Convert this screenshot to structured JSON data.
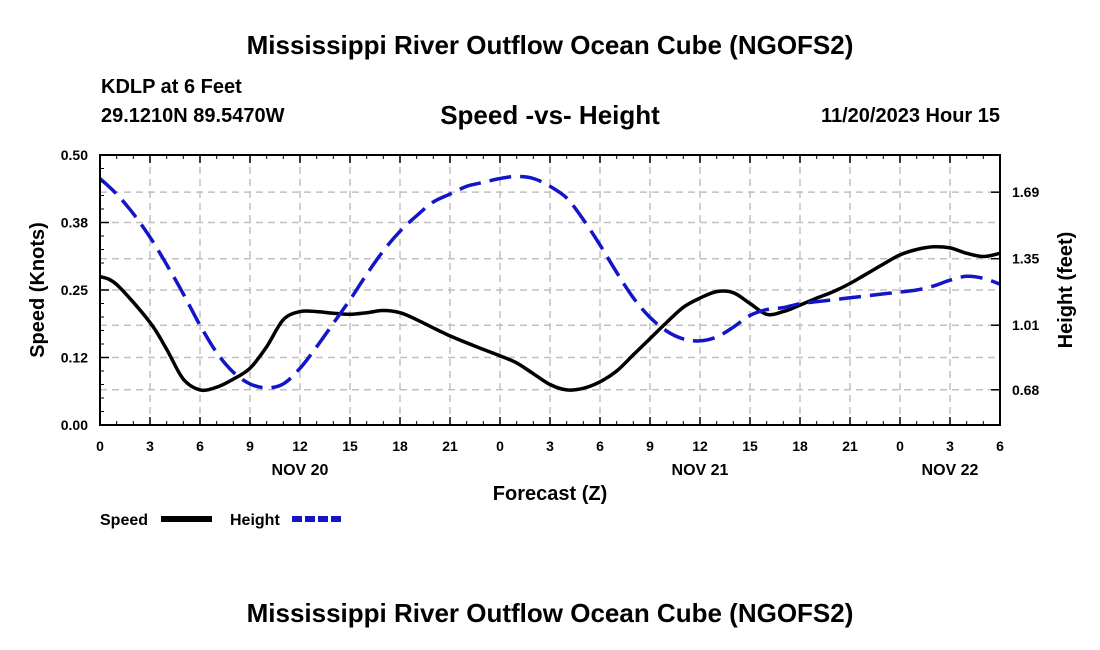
{
  "title": "Mississippi River Outflow Ocean Cube (NGOFS2)",
  "title_bottom": "Mississippi River Outflow Ocean Cube (NGOFS2)",
  "station": "KDLP at 6 Feet",
  "coords": "29.1210N  89.5470W",
  "stamp": "11/20/2023 Hour 15",
  "colors": {
    "speed": "#000000",
    "height": "#1414c8",
    "grid": "#c0c0c0"
  },
  "chart_data": {
    "type": "line",
    "title": "Speed -vs- Height",
    "xlabel": "Forecast (Z)",
    "ylabel": "Speed (Knots)",
    "y2label": "Height (feet)",
    "ylim": [
      0,
      0.5
    ],
    "y2lim": [
      0.5,
      1.88
    ],
    "xlim": [
      0,
      54
    ],
    "x_ticks": [
      0,
      3,
      6,
      9,
      12,
      15,
      18,
      21,
      24,
      27,
      30,
      33,
      36,
      39,
      42,
      45,
      48,
      51,
      54
    ],
    "x_tick_labels": [
      "0",
      "3",
      "6",
      "9",
      "12",
      "15",
      "18",
      "21",
      "0",
      "3",
      "6",
      "9",
      "12",
      "15",
      "18",
      "21",
      "0",
      "3",
      "6"
    ],
    "y_ticks": [
      0.0,
      0.125,
      0.25,
      0.375,
      0.5
    ],
    "y_tick_labels": [
      "0.00",
      "0.12",
      "0.25",
      "0.38",
      "0.50"
    ],
    "y2_ticks": [
      0.68,
      1.01,
      1.35,
      1.69
    ],
    "y2_tick_labels": [
      "0.68",
      "1.01",
      "1.35",
      "1.69"
    ],
    "date_labels": [
      {
        "x": 12,
        "label": "NOV 20"
      },
      {
        "x": 36,
        "label": "NOV 21"
      },
      {
        "x": 51,
        "label": "NOV 22"
      }
    ],
    "series": [
      {
        "name": "Speed",
        "axis": "left",
        "style": "solid",
        "x": [
          0,
          1,
          3,
          4,
          5,
          6,
          7,
          8,
          9,
          10,
          11,
          12,
          13,
          14,
          15,
          16,
          17,
          18,
          19,
          21,
          23,
          24,
          25,
          26,
          27,
          28,
          29,
          30,
          31,
          32,
          33,
          34,
          35,
          36,
          37,
          38,
          39,
          40,
          41,
          42,
          43,
          44,
          45,
          46,
          47,
          48,
          49,
          50,
          51,
          52,
          53,
          54
        ],
        "values": [
          0.275,
          0.26,
          0.19,
          0.14,
          0.085,
          0.065,
          0.07,
          0.085,
          0.105,
          0.145,
          0.195,
          0.21,
          0.21,
          0.207,
          0.205,
          0.208,
          0.212,
          0.208,
          0.195,
          0.165,
          0.14,
          0.128,
          0.115,
          0.095,
          0.075,
          0.065,
          0.068,
          0.08,
          0.1,
          0.13,
          0.16,
          0.19,
          0.218,
          0.235,
          0.247,
          0.245,
          0.225,
          0.205,
          0.21,
          0.222,
          0.235,
          0.247,
          0.262,
          0.28,
          0.298,
          0.315,
          0.325,
          0.33,
          0.328,
          0.318,
          0.312,
          0.318
        ]
      },
      {
        "name": "Height",
        "axis": "right",
        "style": "dashed",
        "x": [
          0,
          1,
          2,
          3,
          4,
          5,
          6,
          7,
          8,
          9,
          10,
          11,
          12,
          13,
          14,
          15,
          16,
          17,
          18,
          19,
          20,
          21,
          22,
          23,
          24,
          25,
          26,
          27,
          28,
          29,
          30,
          31,
          32,
          33,
          34,
          35,
          36,
          37,
          38,
          39,
          40,
          41,
          42,
          43,
          44,
          45,
          46,
          47,
          48,
          49,
          50,
          51,
          52,
          53,
          54
        ],
        "values": [
          1.76,
          1.68,
          1.58,
          1.46,
          1.32,
          1.17,
          1.01,
          0.87,
          0.77,
          0.71,
          0.69,
          0.71,
          0.79,
          0.9,
          1.02,
          1.14,
          1.27,
          1.39,
          1.49,
          1.57,
          1.64,
          1.68,
          1.72,
          1.74,
          1.76,
          1.77,
          1.76,
          1.72,
          1.66,
          1.55,
          1.42,
          1.28,
          1.15,
          1.05,
          0.98,
          0.94,
          0.93,
          0.95,
          1.0,
          1.06,
          1.09,
          1.1,
          1.12,
          1.13,
          1.14,
          1.15,
          1.16,
          1.17,
          1.18,
          1.19,
          1.21,
          1.24,
          1.26,
          1.25,
          1.22
        ]
      }
    ],
    "legend": [
      {
        "label": "Speed",
        "series": 0
      },
      {
        "label": "Height",
        "series": 1
      }
    ]
  }
}
